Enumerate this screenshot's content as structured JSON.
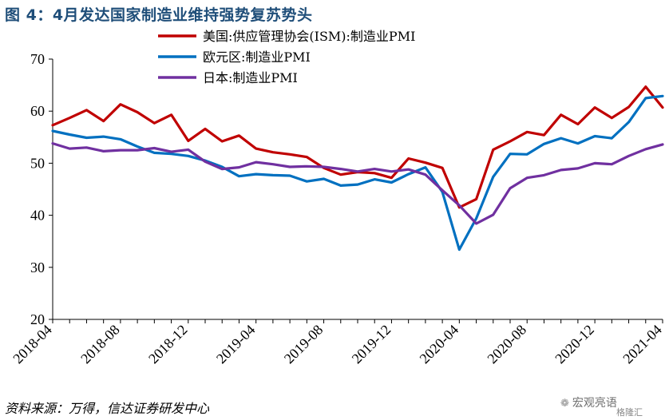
{
  "header": {
    "title": "图 4：4月发达国家制造业维持强势复苏势头"
  },
  "footer": {
    "source": "资料来源：万得，信达证券研发中心"
  },
  "watermark": {
    "text": "宏观亮语",
    "brand": "格隆汇"
  },
  "chart_data": {
    "type": "line",
    "ylim": [
      20,
      70
    ],
    "yticks": [
      20,
      30,
      40,
      50,
      60,
      70
    ],
    "x": [
      "2018-04",
      "2018-05",
      "2018-06",
      "2018-07",
      "2018-08",
      "2018-09",
      "2018-10",
      "2018-11",
      "2018-12",
      "2019-01",
      "2019-02",
      "2019-03",
      "2019-04",
      "2019-05",
      "2019-06",
      "2019-07",
      "2019-08",
      "2019-09",
      "2019-10",
      "2019-11",
      "2019-12",
      "2020-01",
      "2020-02",
      "2020-03",
      "2020-04",
      "2020-05",
      "2020-06",
      "2020-07",
      "2020-08",
      "2020-09",
      "2020-10",
      "2020-11",
      "2020-12",
      "2021-01",
      "2021-02",
      "2021-03",
      "2021-04"
    ],
    "xticks": [
      "2018-04",
      "2018-08",
      "2018-12",
      "2019-04",
      "2019-08",
      "2019-12",
      "2020-04",
      "2020-08",
      "2020-12",
      "2021-04"
    ],
    "legend_position": "top",
    "grid": false,
    "series": [
      {
        "name": "美国:供应管理协会(ISM):制造业PMI",
        "color": "#c00000",
        "values": [
          57.3,
          58.7,
          60.2,
          58.1,
          61.3,
          59.8,
          57.7,
          59.3,
          54.3,
          56.6,
          54.2,
          55.3,
          52.8,
          52.1,
          51.7,
          51.2,
          49.1,
          47.8,
          48.3,
          48.1,
          47.2,
          50.9,
          50.1,
          49.1,
          41.5,
          43.1,
          52.6,
          54.2,
          56.0,
          55.4,
          59.3,
          57.5,
          60.7,
          58.7,
          60.8,
          64.7,
          60.7
        ]
      },
      {
        "name": "欧元区:制造业PMI",
        "color": "#0070c0",
        "values": [
          56.2,
          55.5,
          54.9,
          55.1,
          54.6,
          53.2,
          52.0,
          51.8,
          51.4,
          50.5,
          49.3,
          47.5,
          47.9,
          47.7,
          47.6,
          46.5,
          47.0,
          45.7,
          45.9,
          46.9,
          46.3,
          47.9,
          49.2,
          44.5,
          33.4,
          39.4,
          47.4,
          51.8,
          51.7,
          53.7,
          54.8,
          53.8,
          55.2,
          54.8,
          57.9,
          62.5,
          62.9
        ]
      },
      {
        "name": "日本:制造业PMI",
        "color": "#7030a0",
        "values": [
          53.8,
          52.8,
          53.0,
          52.3,
          52.5,
          52.5,
          52.9,
          52.2,
          52.6,
          50.3,
          48.9,
          49.2,
          50.2,
          49.8,
          49.3,
          49.4,
          49.3,
          48.9,
          48.4,
          48.9,
          48.4,
          48.8,
          47.8,
          44.8,
          41.9,
          38.4,
          40.1,
          45.2,
          47.2,
          47.7,
          48.7,
          49.0,
          50.0,
          49.8,
          51.4,
          52.7,
          53.6
        ]
      }
    ]
  }
}
